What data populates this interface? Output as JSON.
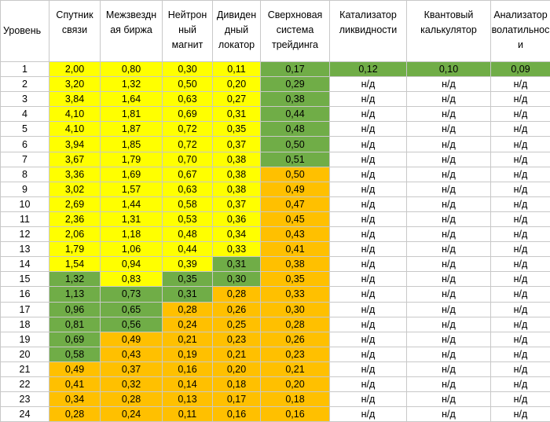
{
  "colors": {
    "yellow": "#ffff00",
    "green": "#70ad47",
    "orange": "#ffc000"
  },
  "headers": [
    [
      "Уровень"
    ],
    [
      "Спутник",
      "связи"
    ],
    [
      "Межзвездн",
      "ая биржа"
    ],
    [
      "Нейтрон",
      "ный",
      "магнит"
    ],
    [
      "Дивиден",
      "дный",
      "локатор"
    ],
    [
      "Сверхновая",
      "система",
      "трейдинга"
    ],
    [
      "Катализатор",
      "ликвидности"
    ],
    [
      "Квантовый",
      "калькулятор"
    ],
    [
      "Анализатор",
      "волатильнос",
      "и"
    ]
  ],
  "rows": [
    {
      "level": "1",
      "values": [
        "2,00",
        "0,80",
        "0,30",
        "0,11",
        "0,17",
        "0,12",
        "0,10",
        "0,09"
      ],
      "colors": [
        "y",
        "y",
        "y",
        "y",
        "g",
        "g",
        "g",
        "g"
      ]
    },
    {
      "level": "2",
      "values": [
        "3,20",
        "1,32",
        "0,50",
        "0,20",
        "0,29",
        "н/д",
        "н/д",
        "н/д"
      ],
      "colors": [
        "y",
        "y",
        "y",
        "y",
        "g",
        "",
        "",
        ""
      ]
    },
    {
      "level": "3",
      "values": [
        "3,84",
        "1,64",
        "0,63",
        "0,27",
        "0,38",
        "н/д",
        "н/д",
        "н/д"
      ],
      "colors": [
        "y",
        "y",
        "y",
        "y",
        "g",
        "",
        "",
        ""
      ]
    },
    {
      "level": "4",
      "values": [
        "4,10",
        "1,81",
        "0,69",
        "0,31",
        "0,44",
        "н/д",
        "н/д",
        "н/д"
      ],
      "colors": [
        "y",
        "y",
        "y",
        "y",
        "g",
        "",
        "",
        ""
      ]
    },
    {
      "level": "5",
      "values": [
        "4,10",
        "1,87",
        "0,72",
        "0,35",
        "0,48",
        "н/д",
        "н/д",
        "н/д"
      ],
      "colors": [
        "y",
        "y",
        "y",
        "y",
        "g",
        "",
        "",
        ""
      ]
    },
    {
      "level": "6",
      "values": [
        "3,94",
        "1,85",
        "0,72",
        "0,37",
        "0,50",
        "н/д",
        "н/д",
        "н/д"
      ],
      "colors": [
        "y",
        "y",
        "y",
        "y",
        "g",
        "",
        "",
        ""
      ]
    },
    {
      "level": "7",
      "values": [
        "3,67",
        "1,79",
        "0,70",
        "0,38",
        "0,51",
        "н/д",
        "н/д",
        "н/д"
      ],
      "colors": [
        "y",
        "y",
        "y",
        "y",
        "g",
        "",
        "",
        ""
      ]
    },
    {
      "level": "8",
      "values": [
        "3,36",
        "1,69",
        "0,67",
        "0,38",
        "0,50",
        "н/д",
        "н/д",
        "н/д"
      ],
      "colors": [
        "y",
        "y",
        "y",
        "y",
        "o",
        "",
        "",
        ""
      ]
    },
    {
      "level": "9",
      "values": [
        "3,02",
        "1,57",
        "0,63",
        "0,38",
        "0,49",
        "н/д",
        "н/д",
        "н/д"
      ],
      "colors": [
        "y",
        "y",
        "y",
        "y",
        "o",
        "",
        "",
        ""
      ]
    },
    {
      "level": "10",
      "values": [
        "2,69",
        "1,44",
        "0,58",
        "0,37",
        "0,47",
        "н/д",
        "н/д",
        "н/д"
      ],
      "colors": [
        "y",
        "y",
        "y",
        "y",
        "o",
        "",
        "",
        ""
      ]
    },
    {
      "level": "11",
      "values": [
        "2,36",
        "1,31",
        "0,53",
        "0,36",
        "0,45",
        "н/д",
        "н/д",
        "н/д"
      ],
      "colors": [
        "y",
        "y",
        "y",
        "y",
        "o",
        "",
        "",
        ""
      ]
    },
    {
      "level": "12",
      "values": [
        "2,06",
        "1,18",
        "0,48",
        "0,34",
        "0,43",
        "н/д",
        "н/д",
        "н/д"
      ],
      "colors": [
        "y",
        "y",
        "y",
        "y",
        "o",
        "",
        "",
        ""
      ]
    },
    {
      "level": "13",
      "values": [
        "1,79",
        "1,06",
        "0,44",
        "0,33",
        "0,41",
        "н/д",
        "н/д",
        "н/д"
      ],
      "colors": [
        "y",
        "y",
        "y",
        "y",
        "o",
        "",
        "",
        ""
      ]
    },
    {
      "level": "14",
      "values": [
        "1,54",
        "0,94",
        "0,39",
        "0,31",
        "0,38",
        "н/д",
        "н/д",
        "н/д"
      ],
      "colors": [
        "y",
        "y",
        "y",
        "g",
        "o",
        "",
        "",
        ""
      ]
    },
    {
      "level": "15",
      "values": [
        "1,32",
        "0,83",
        "0,35",
        "0,30",
        "0,35",
        "н/д",
        "н/д",
        "н/д"
      ],
      "colors": [
        "g",
        "y",
        "g",
        "g",
        "o",
        "",
        "",
        ""
      ]
    },
    {
      "level": "16",
      "values": [
        "1,13",
        "0,73",
        "0,31",
        "0,28",
        "0,33",
        "н/д",
        "н/д",
        "н/д"
      ],
      "colors": [
        "g",
        "g",
        "g",
        "o",
        "o",
        "",
        "",
        ""
      ]
    },
    {
      "level": "17",
      "values": [
        "0,96",
        "0,65",
        "0,28",
        "0,26",
        "0,30",
        "н/д",
        "н/д",
        "н/д"
      ],
      "colors": [
        "g",
        "g",
        "o",
        "o",
        "o",
        "",
        "",
        ""
      ]
    },
    {
      "level": "18",
      "values": [
        "0,81",
        "0,56",
        "0,24",
        "0,25",
        "0,28",
        "н/д",
        "н/д",
        "н/д"
      ],
      "colors": [
        "g",
        "g",
        "o",
        "o",
        "o",
        "",
        "",
        ""
      ]
    },
    {
      "level": "19",
      "values": [
        "0,69",
        "0,49",
        "0,21",
        "0,23",
        "0,26",
        "н/д",
        "н/д",
        "н/д"
      ],
      "colors": [
        "g",
        "o",
        "o",
        "o",
        "o",
        "",
        "",
        ""
      ]
    },
    {
      "level": "20",
      "values": [
        "0,58",
        "0,43",
        "0,19",
        "0,21",
        "0,23",
        "н/д",
        "н/д",
        "н/д"
      ],
      "colors": [
        "g",
        "o",
        "o",
        "o",
        "o",
        "",
        "",
        ""
      ]
    },
    {
      "level": "21",
      "values": [
        "0,49",
        "0,37",
        "0,16",
        "0,20",
        "0,21",
        "н/д",
        "н/д",
        "н/д"
      ],
      "colors": [
        "o",
        "o",
        "o",
        "o",
        "o",
        "",
        "",
        ""
      ]
    },
    {
      "level": "22",
      "values": [
        "0,41",
        "0,32",
        "0,14",
        "0,18",
        "0,20",
        "н/д",
        "н/д",
        "н/д"
      ],
      "colors": [
        "o",
        "o",
        "o",
        "o",
        "o",
        "",
        "",
        ""
      ]
    },
    {
      "level": "23",
      "values": [
        "0,34",
        "0,28",
        "0,13",
        "0,17",
        "0,18",
        "н/д",
        "н/д",
        "н/д"
      ],
      "colors": [
        "o",
        "o",
        "o",
        "o",
        "o",
        "",
        "",
        ""
      ]
    },
    {
      "level": "24",
      "values": [
        "0,28",
        "0,24",
        "0,11",
        "0,16",
        "0,16",
        "н/д",
        "н/д",
        "н/д"
      ],
      "colors": [
        "o",
        "o",
        "o",
        "o",
        "o",
        "",
        "",
        ""
      ]
    }
  ]
}
